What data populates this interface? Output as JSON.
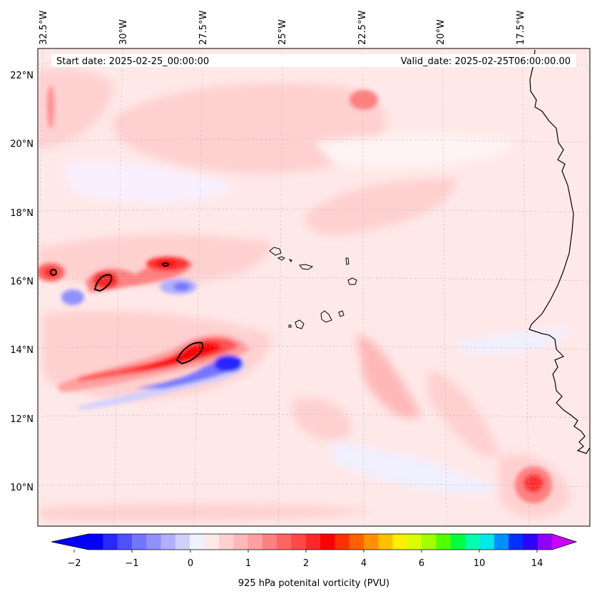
{
  "header": {
    "start_date": "Start date: 2025-02-25_00:00:00",
    "valid_date": "Valid_date: 2025-02-25T06:00:00.00"
  },
  "map": {
    "projection": "lambert-conformal",
    "region": "Eastern tropical Atlantic, Cape Verde Islands and West African coast",
    "lon_labels": [
      "32.5°W",
      "30°W",
      "27.5°W",
      "25°W",
      "22.5°W",
      "20°W",
      "17.5°W"
    ],
    "lat_labels": [
      "22°N",
      "20°N",
      "18°N",
      "16°N",
      "14°N",
      "12°N",
      "10°N"
    ],
    "gridlines": "dashed-light-gray",
    "coastlines": true
  },
  "colorbar": {
    "label": "925 hPa potenital vorticity (PVU)",
    "tick_labels": [
      "−2",
      "−1",
      "0",
      "1",
      "2",
      "4",
      "6",
      "10",
      "14"
    ],
    "colors": [
      "#0000ff",
      "#2828ff",
      "#5050ff",
      "#7474ff",
      "#9090ff",
      "#b0b0ff",
      "#d0d0ff",
      "#f0f0ff",
      "#ffe8e8",
      "#ffd0d0",
      "#ffb8b8",
      "#ffa0a0",
      "#ff8080",
      "#ff6464",
      "#ff4848",
      "#ff2828",
      "#ff0000",
      "#ff3000",
      "#ff6000",
      "#ff9000",
      "#ffc000",
      "#ffef00",
      "#d8ff00",
      "#a0ff00",
      "#50ff00",
      "#00ff40",
      "#00ffb0",
      "#00e8e8",
      "#0090ff",
      "#0030ff",
      "#3000ff",
      "#9000ff"
    ],
    "under_color": "#0000ff",
    "over_color": "#cc00ff"
  }
}
